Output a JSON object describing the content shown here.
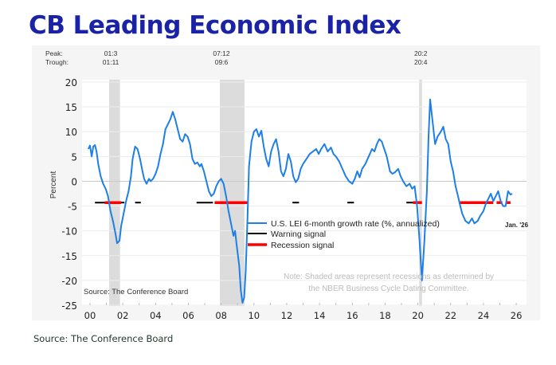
{
  "title": "CB Leading Economic Index",
  "footer_source": "Source: The Conference Board",
  "chart_data": {
    "type": "line",
    "title": "CB Leading Economic Index",
    "ylabel": "Percent",
    "xlabel": "",
    "ylim": [
      -25,
      20
    ],
    "yticks": [
      20,
      15,
      10,
      5,
      0,
      -5,
      -10,
      -15,
      -20,
      -25
    ],
    "xlim": [
      1999.3,
      2027.0
    ],
    "xticks": [
      {
        "value": 2000,
        "label": "00"
      },
      {
        "value": 2002,
        "label": "02"
      },
      {
        "value": 2004,
        "label": "04"
      },
      {
        "value": 2006,
        "label": "06"
      },
      {
        "value": 2008,
        "label": "08"
      },
      {
        "value": 2010,
        "label": "10"
      },
      {
        "value": 2012,
        "label": "12"
      },
      {
        "value": 2014,
        "label": "14"
      },
      {
        "value": 2016,
        "label": "16"
      },
      {
        "value": 2018,
        "label": "18"
      },
      {
        "value": 2020,
        "label": "20"
      },
      {
        "value": 2022,
        "label": "22"
      },
      {
        "value": 2024,
        "label": "24"
      },
      {
        "value": 2026,
        "label": "26"
      }
    ],
    "grid": true,
    "peak_trough": {
      "peak_label": "Peak:",
      "trough_label": "Trough:",
      "entries": [
        {
          "peak": "01:3",
          "trough": "01:11"
        },
        {
          "peak": "07:12",
          "trough": "09:6"
        },
        {
          "peak": "20:2",
          "trough": "20:4"
        }
      ]
    },
    "recessions": [
      {
        "start": 2001.17,
        "end": 2001.83
      },
      {
        "start": 2007.92,
        "end": 2009.42
      },
      {
        "start": 2020.08,
        "end": 2020.25
      }
    ],
    "series": [
      {
        "name": "U.S. LEI 6-month growth rate (%, annualized)",
        "color": "#1e7fe6",
        "points": [
          [
            1999.9,
            6.5
          ],
          [
            2000.0,
            7.2
          ],
          [
            2000.1,
            5.0
          ],
          [
            2000.2,
            7.0
          ],
          [
            2000.3,
            7.3
          ],
          [
            2000.4,
            6.0
          ],
          [
            2000.5,
            3.5
          ],
          [
            2000.65,
            1.0
          ],
          [
            2000.8,
            -0.5
          ],
          [
            2000.95,
            -1.5
          ],
          [
            2001.1,
            -3.0
          ],
          [
            2001.25,
            -6.0
          ],
          [
            2001.4,
            -8.0
          ],
          [
            2001.55,
            -10.5
          ],
          [
            2001.65,
            -12.5
          ],
          [
            2001.8,
            -12.0
          ],
          [
            2001.9,
            -9.0
          ],
          [
            2002.05,
            -6.5
          ],
          [
            2002.2,
            -4.0
          ],
          [
            2002.35,
            -2.0
          ],
          [
            2002.5,
            1.0
          ],
          [
            2002.6,
            4.5
          ],
          [
            2002.75,
            7.0
          ],
          [
            2002.9,
            6.5
          ],
          [
            2003.05,
            4.5
          ],
          [
            2003.2,
            2.0
          ],
          [
            2003.3,
            0.5
          ],
          [
            2003.45,
            -0.5
          ],
          [
            2003.6,
            0.5
          ],
          [
            2003.7,
            0.0
          ],
          [
            2003.85,
            0.5
          ],
          [
            2004.0,
            1.5
          ],
          [
            2004.15,
            3.0
          ],
          [
            2004.3,
            5.5
          ],
          [
            2004.45,
            7.5
          ],
          [
            2004.6,
            10.5
          ],
          [
            2004.75,
            11.5
          ],
          [
            2004.9,
            12.5
          ],
          [
            2005.05,
            14.0
          ],
          [
            2005.2,
            12.5
          ],
          [
            2005.35,
            10.5
          ],
          [
            2005.5,
            8.5
          ],
          [
            2005.65,
            8.0
          ],
          [
            2005.8,
            9.5
          ],
          [
            2005.95,
            9.0
          ],
          [
            2006.1,
            7.5
          ],
          [
            2006.25,
            4.5
          ],
          [
            2006.4,
            3.5
          ],
          [
            2006.55,
            3.8
          ],
          [
            2006.7,
            3.0
          ],
          [
            2006.8,
            3.5
          ],
          [
            2006.95,
            2.0
          ],
          [
            2007.1,
            0.0
          ],
          [
            2007.25,
            -2.0
          ],
          [
            2007.4,
            -3.0
          ],
          [
            2007.55,
            -2.5
          ],
          [
            2007.7,
            -1.0
          ],
          [
            2007.85,
            0.0
          ],
          [
            2008.0,
            0.5
          ],
          [
            2008.15,
            -0.5
          ],
          [
            2008.3,
            -3.0
          ],
          [
            2008.45,
            -6.0
          ],
          [
            2008.6,
            -8.5
          ],
          [
            2008.75,
            -11.0
          ],
          [
            2008.85,
            -10.0
          ],
          [
            2008.95,
            -13.0
          ],
          [
            2009.1,
            -17.0
          ],
          [
            2009.2,
            -22.0
          ],
          [
            2009.3,
            -24.5
          ],
          [
            2009.4,
            -23.5
          ],
          [
            2009.5,
            -18.0
          ],
          [
            2009.6,
            -8.0
          ],
          [
            2009.7,
            3.0
          ],
          [
            2009.85,
            8.0
          ],
          [
            2010.0,
            10.0
          ],
          [
            2010.15,
            10.5
          ],
          [
            2010.3,
            9.0
          ],
          [
            2010.45,
            10.2
          ],
          [
            2010.6,
            7.0
          ],
          [
            2010.75,
            4.5
          ],
          [
            2010.9,
            3.0
          ],
          [
            2011.05,
            6.0
          ],
          [
            2011.2,
            7.5
          ],
          [
            2011.35,
            8.5
          ],
          [
            2011.5,
            6.0
          ],
          [
            2011.65,
            2.0
          ],
          [
            2011.8,
            1.0
          ],
          [
            2011.95,
            2.5
          ],
          [
            2012.1,
            5.5
          ],
          [
            2012.25,
            4.0
          ],
          [
            2012.4,
            1.0
          ],
          [
            2012.55,
            -0.2
          ],
          [
            2012.7,
            0.5
          ],
          [
            2012.85,
            2.5
          ],
          [
            2013.0,
            3.5
          ],
          [
            2013.2,
            4.5
          ],
          [
            2013.4,
            5.5
          ],
          [
            2013.6,
            6.0
          ],
          [
            2013.8,
            6.5
          ],
          [
            2013.95,
            5.5
          ],
          [
            2014.1,
            6.5
          ],
          [
            2014.3,
            7.5
          ],
          [
            2014.5,
            6.0
          ],
          [
            2014.7,
            6.8
          ],
          [
            2014.85,
            5.5
          ],
          [
            2015.0,
            5.0
          ],
          [
            2015.2,
            4.0
          ],
          [
            2015.4,
            2.5
          ],
          [
            2015.6,
            1.0
          ],
          [
            2015.8,
            0.0
          ],
          [
            2016.0,
            -0.5
          ],
          [
            2016.15,
            0.5
          ],
          [
            2016.3,
            2.0
          ],
          [
            2016.45,
            0.8
          ],
          [
            2016.6,
            2.5
          ],
          [
            2016.8,
            3.5
          ],
          [
            2017.0,
            5.0
          ],
          [
            2017.2,
            6.5
          ],
          [
            2017.35,
            6.0
          ],
          [
            2017.5,
            7.5
          ],
          [
            2017.65,
            8.5
          ],
          [
            2017.8,
            8.0
          ],
          [
            2017.95,
            6.5
          ],
          [
            2018.1,
            5.0
          ],
          [
            2018.3,
            2.0
          ],
          [
            2018.45,
            1.5
          ],
          [
            2018.6,
            1.8
          ],
          [
            2018.8,
            2.5
          ],
          [
            2018.95,
            1.0
          ],
          [
            2019.1,
            0.0
          ],
          [
            2019.3,
            -1.0
          ],
          [
            2019.5,
            -0.5
          ],
          [
            2019.65,
            -1.5
          ],
          [
            2019.8,
            -1.0
          ],
          [
            2019.95,
            -5.0
          ],
          [
            2020.1,
            -12.0
          ],
          [
            2020.25,
            -20.0
          ],
          [
            2020.4,
            -12.0
          ],
          [
            2020.55,
            -2.0
          ],
          [
            2020.65,
            9.0
          ],
          [
            2020.75,
            16.5
          ],
          [
            2020.9,
            12.0
          ],
          [
            2021.05,
            7.5
          ],
          [
            2021.2,
            9.0
          ],
          [
            2021.4,
            10.0
          ],
          [
            2021.55,
            11.0
          ],
          [
            2021.7,
            8.5
          ],
          [
            2021.85,
            7.5
          ],
          [
            2022.0,
            4.0
          ],
          [
            2022.15,
            2.0
          ],
          [
            2022.3,
            -1.0
          ],
          [
            2022.45,
            -3.0
          ],
          [
            2022.55,
            -4.5
          ],
          [
            2022.7,
            -6.5
          ],
          [
            2022.9,
            -8.0
          ],
          [
            2023.1,
            -8.5
          ],
          [
            2023.3,
            -7.5
          ],
          [
            2023.45,
            -8.5
          ],
          [
            2023.65,
            -8.0
          ],
          [
            2023.8,
            -7.0
          ],
          [
            2024.0,
            -6.0
          ],
          [
            2024.15,
            -4.5
          ],
          [
            2024.3,
            -3.5
          ],
          [
            2024.45,
            -2.5
          ],
          [
            2024.6,
            -4.0
          ],
          [
            2024.75,
            -3.0
          ],
          [
            2024.9,
            -2.0
          ],
          [
            2025.05,
            -4.0
          ],
          [
            2025.2,
            -5.0
          ],
          [
            2025.35,
            -5.0
          ],
          [
            2025.5,
            -2.0
          ],
          [
            2025.65,
            -2.7
          ],
          [
            2025.75,
            -2.5
          ]
        ]
      }
    ],
    "signals": {
      "warning": {
        "name": "Warning signal",
        "color": "#000000",
        "level": -4.3,
        "segments": [
          [
            2000.3,
            2001.15
          ],
          [
            2001.85,
            2002.1
          ],
          [
            2002.75,
            2003.1
          ],
          [
            2006.5,
            2007.5
          ],
          [
            2012.35,
            2012.75
          ],
          [
            2015.7,
            2016.1
          ],
          [
            2019.3,
            2019.7
          ]
        ]
      },
      "recession": {
        "name": "Recession signal",
        "color": "#ff0000",
        "level": -4.3,
        "segments": [
          [
            2000.9,
            2001.9
          ],
          [
            2007.6,
            2009.6
          ],
          [
            2019.7,
            2020.25
          ],
          [
            2022.5,
            2024.6
          ],
          [
            2024.8,
            2025.15
          ],
          [
            2025.4,
            2025.65
          ]
        ]
      }
    },
    "legend": {
      "position": "center-right",
      "entries": [
        {
          "label": "U.S. LEI 6-month growth rate (%, annualized)",
          "color": "#1e7fe6"
        },
        {
          "label": "Warning signal",
          "color": "#000000"
        },
        {
          "label": "Recession signal",
          "color": "#ff0000"
        }
      ]
    },
    "annotations": {
      "latest": "Jan. '26",
      "note_line1": "Note: Shaded areas represent recessions as determined by",
      "note_line2": "the NBER Business Cycle Dating Committee.",
      "source": "Source: The Conference Board"
    }
  }
}
